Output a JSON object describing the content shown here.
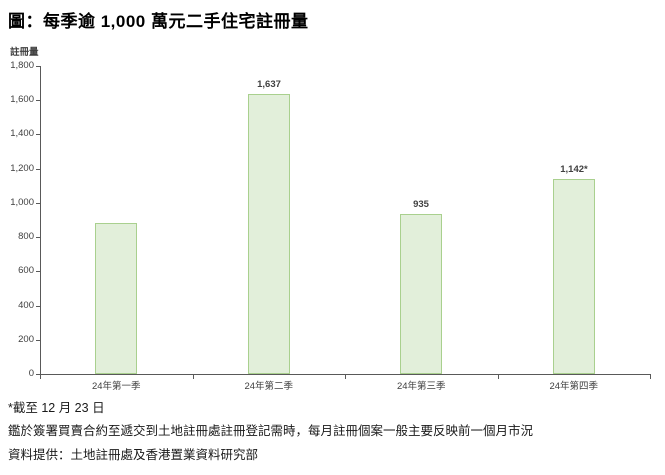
{
  "title": "圖：每季逾 1,000 萬元二手住宅註冊量",
  "chart_data": {
    "type": "bar",
    "categories": [
      "24年第一季",
      "24年第二季",
      "24年第三季",
      "24年第四季"
    ],
    "values": [
      885,
      1637,
      935,
      1142
    ],
    "data_labels": [
      "",
      "1,637",
      "935",
      "1,142*"
    ],
    "title": "圖：每季逾 1,000 萬元二手住宅註冊量",
    "xlabel": "",
    "ylabel": "註冊量",
    "ylim": [
      0,
      1800
    ],
    "ytick_step": 200,
    "grid": false,
    "legend": "none",
    "bar_fill": "#e2efda",
    "bar_border": "#a9d08e",
    "axis_color": "#595959"
  },
  "footnotes": {
    "asof": "*截至 12 月 23 日",
    "note": "鑑於簽署買賣合約至遞交到土地註冊處註冊登記需時，每月註冊個案一般主要反映前一個月市況",
    "source": "資料提供：土地註冊處及香港置業資料研究部"
  }
}
